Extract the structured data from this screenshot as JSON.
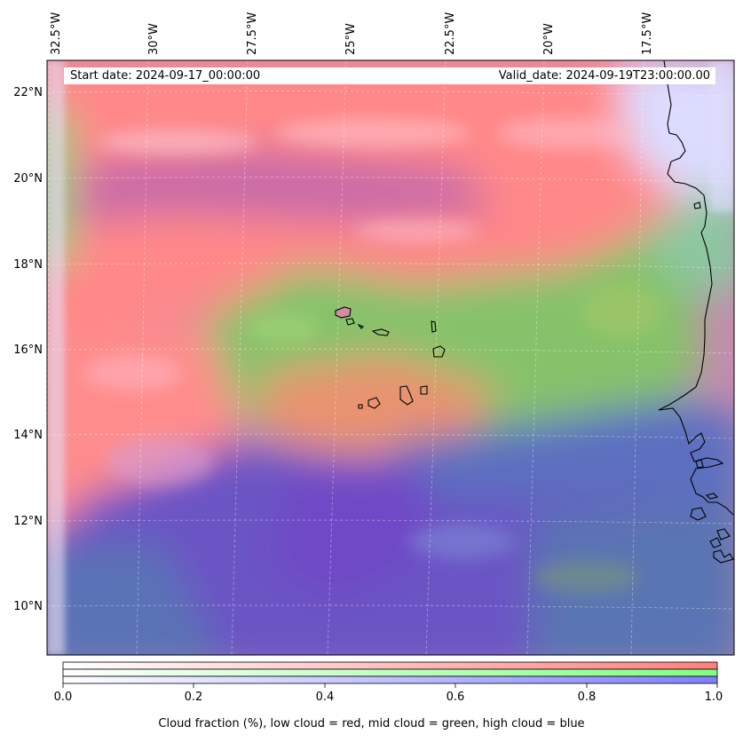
{
  "map": {
    "region_lon_range_deg_east": [
      -33.3,
      -14.9
    ],
    "region_lat_range_deg_north": [
      8.9,
      22.8
    ],
    "lon_labels": [
      "32.5°W",
      "30°W",
      "27.5°W",
      "25°W",
      "22.5°W",
      "20°W",
      "17.5°W"
    ],
    "lon_values": [
      -32.5,
      -30,
      -27.5,
      -25,
      -22.5,
      -20,
      -17.5
    ],
    "lat_labels": [
      "22°N",
      "20°N",
      "18°N",
      "16°N",
      "14°N",
      "12°N",
      "10°N"
    ],
    "lat_values": [
      22,
      20,
      18,
      16,
      14,
      12,
      10
    ],
    "gridlines": true,
    "features": [
      "Cape Verde islands",
      "West African coastline"
    ]
  },
  "info": {
    "start_date": "Start date: 2024-09-17_00:00:00",
    "valid_date": "Valid_date: 2024-09-19T23:00:00.00"
  },
  "colorbar": {
    "ticks": [
      "0.0",
      "0.2",
      "0.4",
      "0.6",
      "0.8",
      "1.0"
    ],
    "range": [
      0,
      1
    ],
    "label": "Cloud fraction (%), low cloud = red, mid cloud = green, high cloud = blue",
    "colors": {
      "low": "#ff8080",
      "mid": "#80ff80",
      "high": "#8080ff"
    }
  }
}
